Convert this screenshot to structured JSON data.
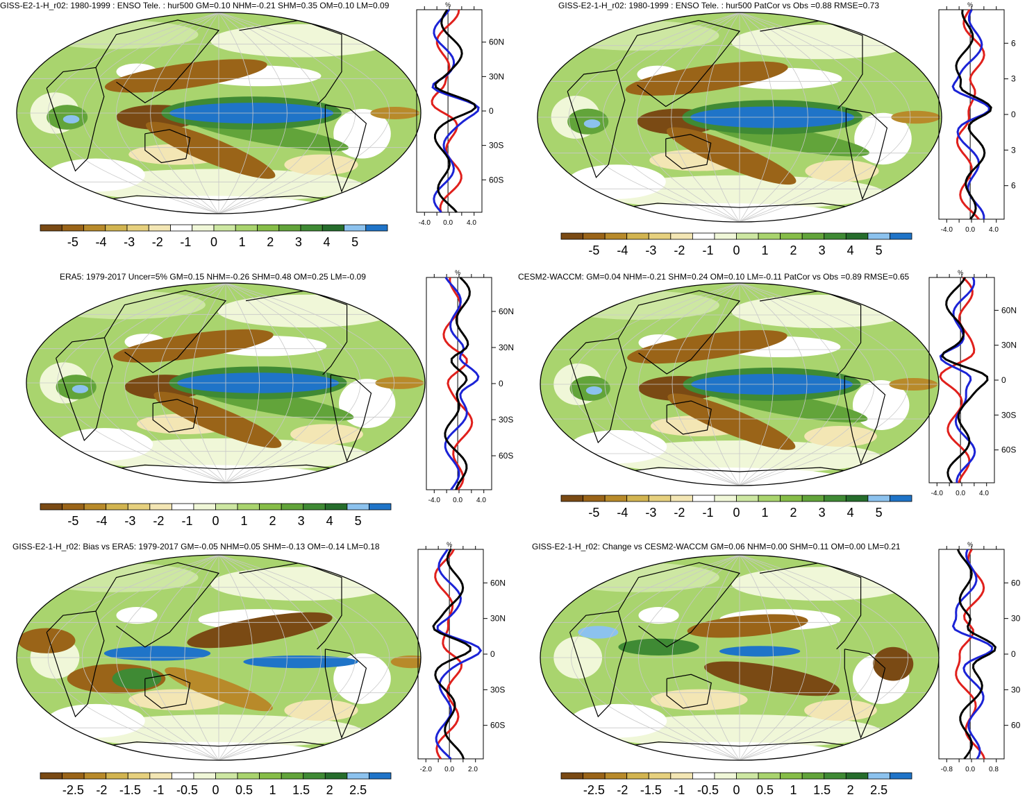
{
  "palette": [
    "#7a4a14",
    "#9a6418",
    "#b88a2a",
    "#d2b450",
    "#e6d07e",
    "#f3e6b4",
    "#ffffff",
    "#f0f7d8",
    "#cde7a2",
    "#a9d46e",
    "#86bd48",
    "#62a43a",
    "#3f8a34",
    "#266d2c",
    "#8cc2ee",
    "#1f74c8"
  ],
  "panels": [
    {
      "id": "p1",
      "title": "GISS-E2-1-H_r02: 1980-1999 : ENSO Tele. : hur500 GM=0.10 NHM=-0.21 SHM=0.35 OM=0.10 LM=0.09",
      "zonal": {
        "unit": "%",
        "xticks": [
          "-4.0",
          "0.0",
          "4.0"
        ],
        "lat_labels": [
          "60N",
          "30N",
          "0",
          "30S",
          "60S"
        ],
        "show_lat_labels": true
      },
      "colorbar": {
        "labels": [
          "-5",
          "-4",
          "-3",
          "-2",
          "-1",
          "0",
          "1",
          "2",
          "3",
          "4",
          "5"
        ]
      }
    },
    {
      "id": "p2",
      "title": "GISS-E2-1-H_r02: 1980-1999 : ENSO Tele. : hur500 PatCor vs Obs =0.88 RMSE=0.73",
      "zonal": {
        "unit": "%",
        "xticks": [
          "-4.0",
          "0.0",
          "4.0"
        ],
        "lat_labels": [
          "6",
          "3",
          "0",
          "3",
          "6"
        ],
        "show_lat_labels": true
      },
      "colorbar": {
        "labels": [
          "-5",
          "-4",
          "-3",
          "-2",
          "-1",
          "0",
          "1",
          "2",
          "3",
          "4",
          "5"
        ]
      }
    },
    {
      "id": "p3",
      "title": "ERA5: 1979-2017 Uncer=5% GM=0.15 NHM=-0.26 SHM=0.48 OM=0.25 LM=-0.09",
      "zonal": {
        "unit": "%",
        "xticks": [
          "-4.0",
          "0.0",
          "4.0"
        ],
        "lat_labels": [
          "60N",
          "30N",
          "0",
          "30S",
          "60S"
        ],
        "show_lat_labels": true
      },
      "colorbar": {
        "labels": [
          "-5",
          "-4",
          "-3",
          "-2",
          "-1",
          "0",
          "1",
          "2",
          "3",
          "4",
          "5"
        ]
      }
    },
    {
      "id": "p4",
      "title": "CESM2-WACCM: GM=0.04 NHM=-0.21 SHM=0.24 OM=0.10 LM=-0.11 PatCor vs Obs =0.89 RMSE=0.65",
      "zonal": {
        "unit": "%",
        "xticks": [
          "-4.0",
          "0.0",
          "4.0"
        ],
        "lat_labels": [
          "60N",
          "30N",
          "0",
          "30S",
          "60S"
        ],
        "show_lat_labels": true
      },
      "colorbar": {
        "labels": [
          "-5",
          "-4",
          "-3",
          "-2",
          "-1",
          "0",
          "1",
          "2",
          "3",
          "4",
          "5"
        ]
      }
    },
    {
      "id": "p5",
      "title": "GISS-E2-1-H_r02: Bias vs ERA5: 1979-2017 GM=-0.05 NHM=0.05 SHM=-0.13 OM=-0.14 LM=0.18",
      "zonal": {
        "unit": "%",
        "xticks": [
          "-2.0",
          "0.0",
          "2.0"
        ],
        "lat_labels": [
          "60N",
          "30N",
          "0",
          "30S",
          "60S"
        ],
        "show_lat_labels": true
      },
      "colorbar": {
        "labels": [
          "-2.5",
          "-2",
          "-1.5",
          "-1",
          "-0.5",
          "0",
          "0.5",
          "1",
          "1.5",
          "2",
          "2.5"
        ]
      }
    },
    {
      "id": "p6",
      "title": "GISS-E2-1-H_r02: Change vs CESM2-WACCM GM=0.06 NHM=0.00 SHM=0.11 OM=0.00 LM=0.21",
      "zonal": {
        "unit": "%",
        "xticks": [
          "-0.8",
          "0.0",
          "0.8"
        ],
        "lat_labels": [
          "60",
          "30",
          "0",
          "30",
          "60"
        ],
        "show_lat_labels": true
      },
      "colorbar": {
        "labels": [
          "-2.5",
          "-2",
          "-1.5",
          "-1",
          "-0.5",
          "0",
          "0.5",
          "1",
          "1.5",
          "2",
          "2.5"
        ]
      }
    }
  ]
}
